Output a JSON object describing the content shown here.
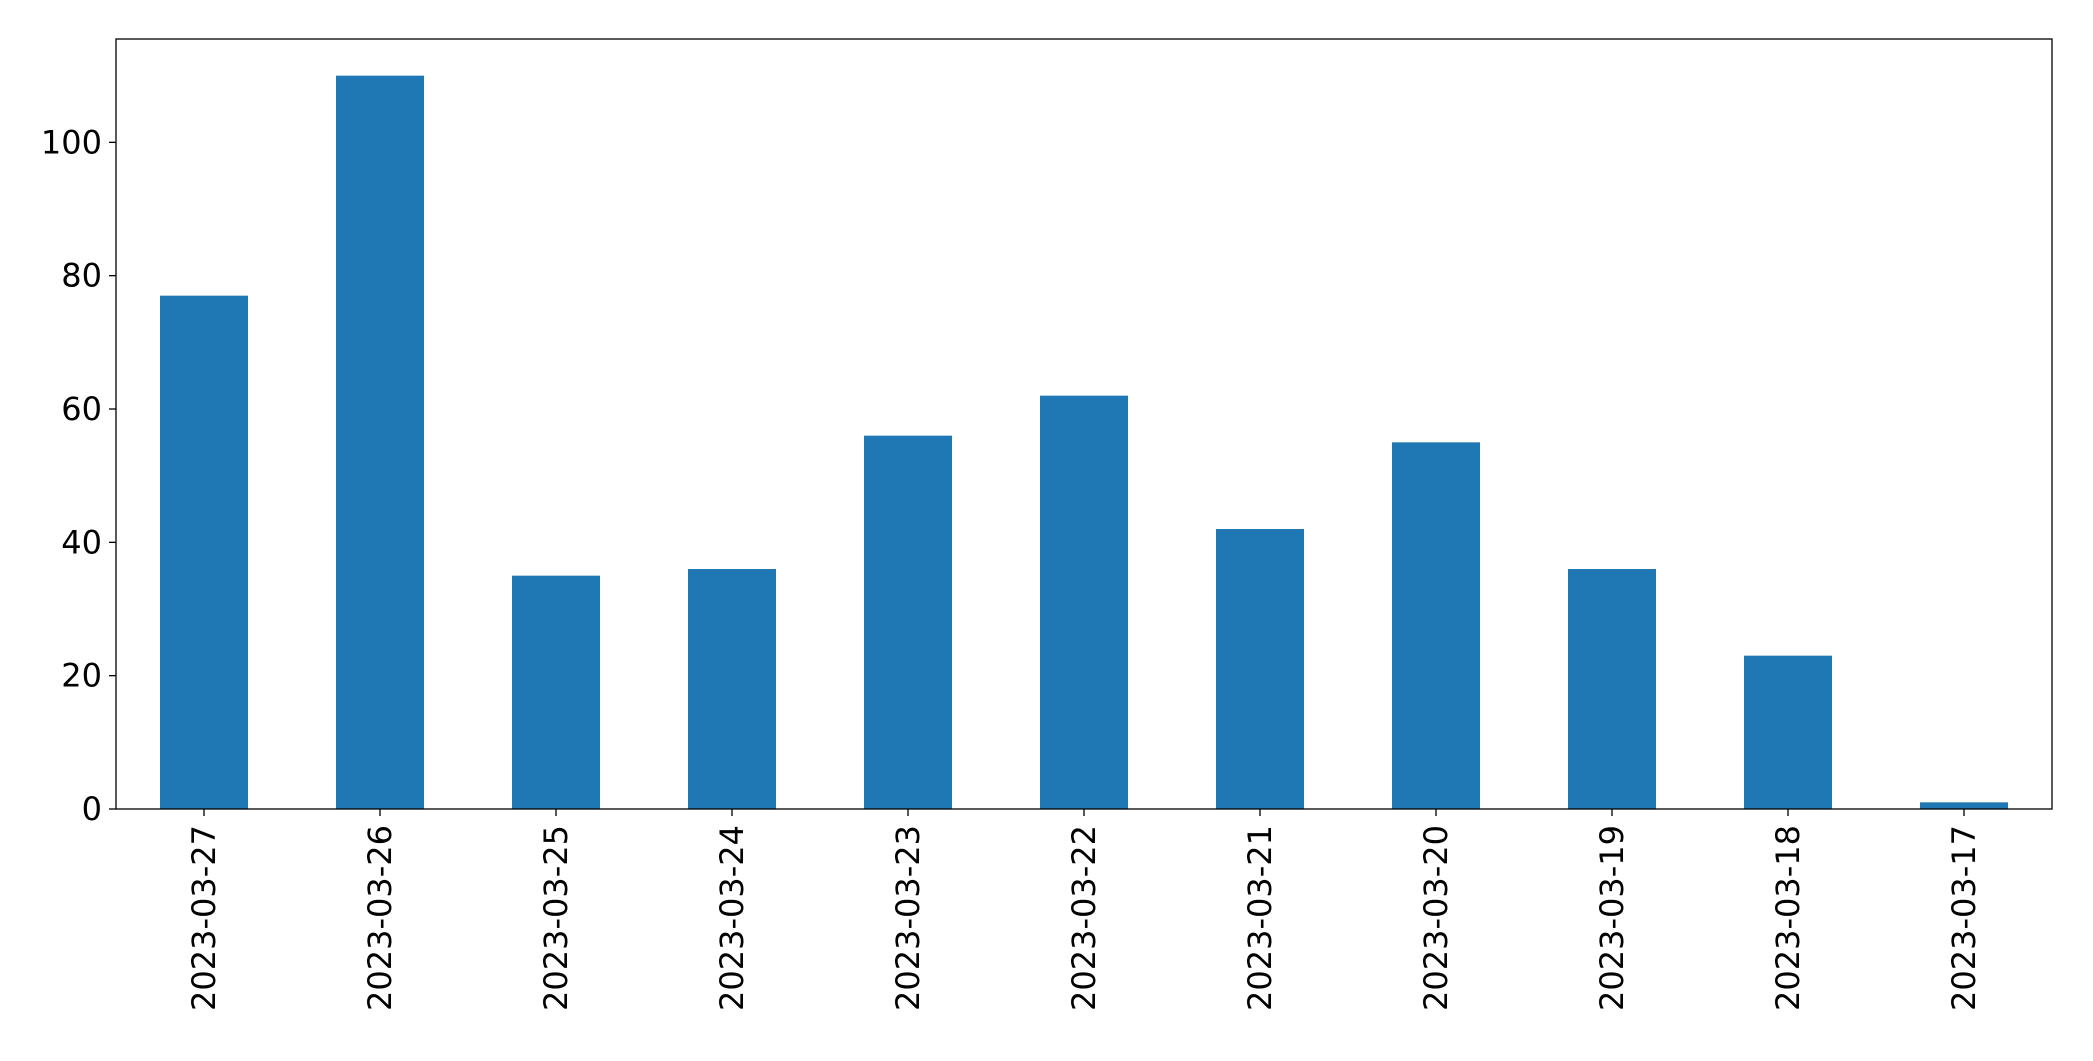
{
  "chart_data": {
    "type": "bar",
    "categories": [
      "2023-03-27",
      "2023-03-26",
      "2023-03-25",
      "2023-03-24",
      "2023-03-23",
      "2023-03-22",
      "2023-03-21",
      "2023-03-20",
      "2023-03-19",
      "2023-03-18",
      "2023-03-17"
    ],
    "values": [
      77,
      110,
      35,
      36,
      56,
      62,
      42,
      55,
      36,
      23,
      1
    ],
    "color": "#1f77b4",
    "ylim": [
      0,
      115.5
    ],
    "yticks": [
      0,
      20,
      40,
      60,
      80,
      100
    ],
    "grid": false
  }
}
